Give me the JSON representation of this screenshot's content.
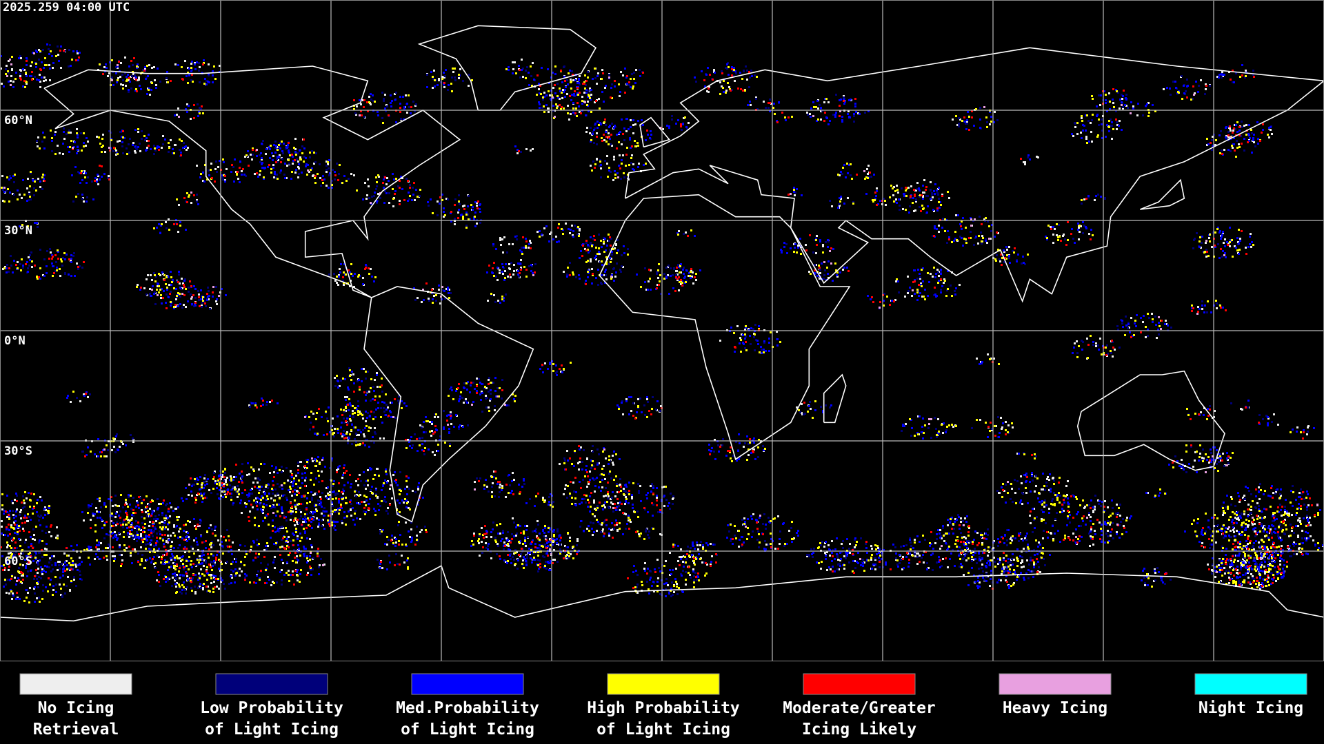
{
  "header": {
    "timestamp": "2025.259 04:00 UTC"
  },
  "map": {
    "latitude_labels": [
      "60°N",
      "30°N",
      "0°N",
      "30°S",
      "60°S"
    ]
  },
  "legend": {
    "items": [
      {
        "lines": [
          "No Icing",
          "Retrieval"
        ],
        "color": "#eeeeee"
      },
      {
        "lines": [
          "Low Probability",
          "of Light Icing"
        ],
        "color": "#00007a"
      },
      {
        "lines": [
          "Med.Probability",
          "of Light Icing"
        ],
        "color": "#0000ff"
      },
      {
        "lines": [
          "High Probability",
          "of Light Icing"
        ],
        "color": "#ffff00"
      },
      {
        "lines": [
          "Moderate/Greater",
          "Icing Likely"
        ],
        "color": "#ff0000"
      },
      {
        "lines": [
          "Heavy Icing"
        ],
        "color": "#e8a0e0"
      },
      {
        "lines": [
          "Night Icing"
        ],
        "color": "#00ffff"
      }
    ]
  }
}
